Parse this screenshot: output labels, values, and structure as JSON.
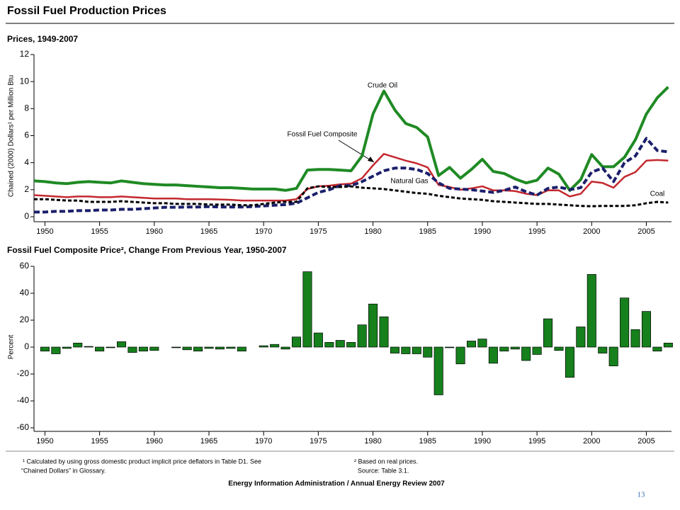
{
  "title": "Fossil Fuel Production Prices",
  "chart_data": [
    {
      "type": "line",
      "title": "Prices, 1949-2007",
      "ylabel": "Chained (2000) Dollars¹ per Million Btu",
      "x": [
        1949,
        1950,
        1951,
        1952,
        1953,
        1954,
        1955,
        1956,
        1957,
        1958,
        1959,
        1960,
        1961,
        1962,
        1963,
        1964,
        1965,
        1966,
        1967,
        1968,
        1969,
        1970,
        1971,
        1972,
        1973,
        1974,
        1975,
        1976,
        1977,
        1978,
        1979,
        1980,
        1981,
        1982,
        1983,
        1984,
        1985,
        1986,
        1987,
        1988,
        1989,
        1990,
        1991,
        1992,
        1993,
        1994,
        1995,
        1996,
        1997,
        1998,
        1999,
        2000,
        2001,
        2002,
        2003,
        2004,
        2005,
        2006,
        2007
      ],
      "series": [
        {
          "name": "Crude Oil",
          "color": "#1f8a24",
          "dashed": false,
          "values": [
            2.65,
            2.6,
            2.5,
            2.45,
            2.55,
            2.6,
            2.55,
            2.5,
            2.65,
            2.55,
            2.45,
            2.4,
            2.35,
            2.35,
            2.3,
            2.25,
            2.2,
            2.15,
            2.15,
            2.1,
            2.05,
            2.05,
            2.05,
            1.95,
            2.1,
            3.45,
            3.5,
            3.5,
            3.45,
            3.4,
            4.5,
            7.6,
            9.3,
            7.9,
            6.9,
            6.6,
            5.9,
            3.05,
            3.65,
            2.85,
            3.5,
            4.25,
            3.35,
            3.2,
            2.8,
            2.5,
            2.7,
            3.6,
            3.15,
            1.95,
            2.75,
            4.6,
            3.7,
            3.7,
            4.4,
            5.7,
            7.6,
            8.8,
            9.6
          ]
        },
        {
          "name": "Fossil Fuel Composite",
          "color": "#c3282e",
          "dashed": false,
          "values": [
            1.6,
            1.55,
            1.5,
            1.45,
            1.5,
            1.5,
            1.45,
            1.45,
            1.5,
            1.45,
            1.4,
            1.35,
            1.35,
            1.35,
            1.3,
            1.3,
            1.3,
            1.28,
            1.25,
            1.2,
            1.2,
            1.2,
            1.2,
            1.2,
            1.3,
            2.05,
            2.25,
            2.3,
            2.4,
            2.45,
            2.85,
            3.8,
            4.65,
            4.4,
            4.15,
            3.95,
            3.65,
            2.35,
            2.2,
            2.0,
            2.1,
            2.25,
            1.95,
            1.95,
            1.9,
            1.7,
            1.6,
            1.95,
            1.95,
            1.5,
            1.7,
            2.6,
            2.5,
            2.15,
            2.95,
            3.3,
            4.15,
            4.2,
            4.15
          ]
        },
        {
          "name": "Natural Gas",
          "color": "#1b1f6b",
          "dashed": true,
          "values": [
            0.35,
            0.35,
            0.4,
            0.4,
            0.45,
            0.45,
            0.5,
            0.5,
            0.55,
            0.55,
            0.6,
            0.65,
            0.7,
            0.7,
            0.72,
            0.72,
            0.75,
            0.72,
            0.72,
            0.72,
            0.75,
            0.8,
            0.85,
            0.9,
            1.0,
            1.4,
            1.8,
            2.0,
            2.3,
            2.3,
            2.6,
            3.0,
            3.4,
            3.6,
            3.6,
            3.5,
            3.2,
            2.5,
            2.1,
            2.05,
            2.0,
            1.9,
            1.8,
            1.95,
            2.2,
            1.85,
            1.6,
            2.1,
            2.2,
            2.0,
            2.15,
            3.3,
            3.6,
            2.6,
            4.0,
            4.5,
            5.8,
            4.9,
            4.8
          ]
        },
        {
          "name": "Coal",
          "color": "#000000",
          "dashed": true,
          "values": [
            1.3,
            1.3,
            1.25,
            1.2,
            1.2,
            1.1,
            1.1,
            1.1,
            1.15,
            1.1,
            1.05,
            1.0,
            1.0,
            0.95,
            0.95,
            0.95,
            0.9,
            0.9,
            0.9,
            0.85,
            0.85,
            0.95,
            1.05,
            1.1,
            1.1,
            2.1,
            2.25,
            2.2,
            2.2,
            2.25,
            2.15,
            2.1,
            2.05,
            1.95,
            1.85,
            1.75,
            1.7,
            1.55,
            1.45,
            1.35,
            1.3,
            1.25,
            1.15,
            1.1,
            1.05,
            1.0,
            0.95,
            0.95,
            0.9,
            0.85,
            0.8,
            0.78,
            0.8,
            0.8,
            0.8,
            0.85,
            1.0,
            1.1,
            1.05
          ]
        }
      ],
      "xlim": [
        1949,
        2007.3
      ],
      "xticks": [
        1950,
        1955,
        1960,
        1965,
        1970,
        1975,
        1980,
        1985,
        1990,
        1995,
        2000,
        2005
      ],
      "ylim": [
        0,
        12
      ],
      "yticks": [
        0,
        2,
        4,
        6,
        8,
        10,
        12
      ]
    },
    {
      "type": "bar",
      "title": "Fossil Fuel Composite Price², Change From Previous Year, 1950-2007",
      "ylabel": "Percent",
      "x": [
        1950,
        1951,
        1952,
        1953,
        1954,
        1955,
        1956,
        1957,
        1958,
        1959,
        1960,
        1961,
        1962,
        1963,
        1964,
        1965,
        1966,
        1967,
        1968,
        1969,
        1970,
        1971,
        1972,
        1973,
        1974,
        1975,
        1976,
        1977,
        1978,
        1979,
        1980,
        1981,
        1982,
        1983,
        1984,
        1985,
        1986,
        1987,
        1988,
        1989,
        1990,
        1991,
        1992,
        1993,
        1994,
        1995,
        1996,
        1997,
        1998,
        1999,
        2000,
        2001,
        2002,
        2003,
        2004,
        2005,
        2006,
        2007
      ],
      "values": [
        -3,
        -5,
        -1,
        3,
        0.5,
        -3,
        -0.5,
        4,
        -4,
        -3,
        -2.5,
        0,
        -0.5,
        -2,
        -3,
        -1,
        -1.5,
        -1,
        -3,
        0,
        1,
        2,
        -1.5,
        7.5,
        56,
        10.5,
        3.5,
        5,
        3.5,
        16.5,
        32,
        22.5,
        -4.5,
        -5,
        -5,
        -7.5,
        -35.5,
        -0.5,
        -12.5,
        4.5,
        6,
        -12,
        -3,
        -1.5,
        -10,
        -5.5,
        21,
        -2.5,
        -22.5,
        15,
        54,
        -4.5,
        -14,
        36.5,
        13,
        26.5,
        -3,
        3
      ],
      "color": "#16801c",
      "xlim": [
        1949,
        2007.3
      ],
      "xticks": [
        1950,
        1955,
        1960,
        1965,
        1970,
        1975,
        1980,
        1985,
        1990,
        1995,
        2000,
        2005
      ],
      "ylim": [
        -60,
        60
      ],
      "yticks": [
        -60,
        -40,
        -20,
        0,
        20,
        40,
        60
      ]
    }
  ],
  "footnotes": [
    "¹ Calculated by using gross domestic product implicit price deflators in Table D1.  See",
    "“Chained Dollars” in Glossary.",
    "² Based on real prices.",
    "Source:  Table 3.1."
  ],
  "credit": "Energy Information Administration / Annual Energy Review 2007",
  "page_number": "13"
}
